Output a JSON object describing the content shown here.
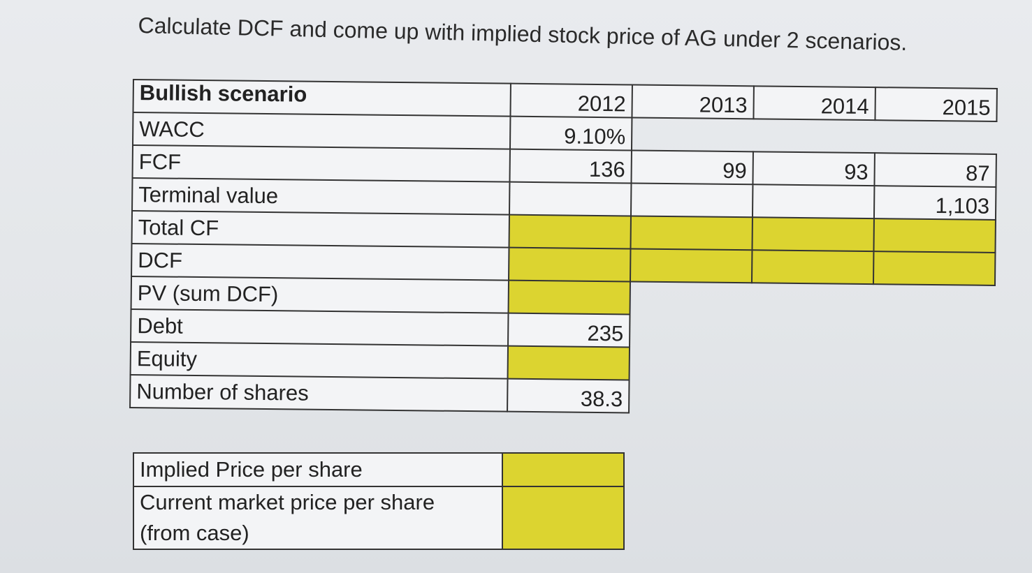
{
  "title": "Calculate DCF and come up with implied stock price of AG under 2 scenarios.",
  "table": {
    "header_label": "Bullish scenario",
    "years": [
      "2012",
      "2013",
      "2014",
      "2015"
    ],
    "rows": {
      "wacc": {
        "label": "WACC",
        "values": [
          "9.10%"
        ]
      },
      "fcf": {
        "label": "FCF",
        "values": [
          "136",
          "99",
          "93",
          "87"
        ]
      },
      "terminal_value": {
        "label": "Terminal value",
        "values": [
          "",
          "",
          "",
          "1,103"
        ]
      },
      "total_cf": {
        "label": "Total CF"
      },
      "dcf": {
        "label": "DCF"
      },
      "pv": {
        "label": "PV (sum DCF)"
      },
      "debt": {
        "label": "Debt",
        "value": "235"
      },
      "equity": {
        "label": "Equity"
      },
      "shares": {
        "label": "Number of shares",
        "value": "38.3"
      }
    }
  },
  "price_table": {
    "implied_label": "Implied Price per share",
    "market_label_line1": "Current market price per share",
    "market_label_line2": "(from case)"
  },
  "colors": {
    "input_cell": "#dcd430",
    "background": "#e6e8eb",
    "border": "#333333"
  }
}
